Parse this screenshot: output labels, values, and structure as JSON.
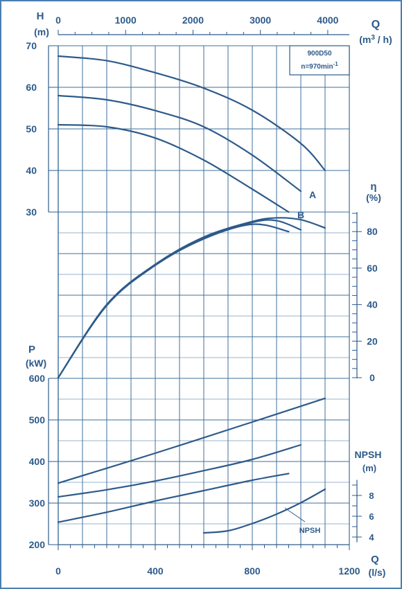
{
  "chart_data": {
    "type": "line",
    "model": "900D50",
    "speed": "n=970min",
    "speed_exp": "-1",
    "flow_axis_top": {
      "label": "Q",
      "unit_prefix": "(m",
      "unit_exp": "3",
      "unit_suffix": " / h)",
      "ticks": [
        "0",
        "1000",
        "2000",
        "3000",
        "4000"
      ],
      "range": [
        0,
        4320
      ]
    },
    "flow_axis_bottom": {
      "label": "Q",
      "unit": "(l/s)",
      "ticks": [
        "0",
        "400",
        "800",
        "1200"
      ],
      "range": [
        0,
        1200
      ]
    },
    "head_axis": {
      "label": "H",
      "unit": "(m)",
      "ticks": [
        "70",
        "60",
        "50",
        "40",
        "30"
      ],
      "range": [
        30,
        70
      ]
    },
    "eff_axis": {
      "label": "η",
      "unit": "(%)",
      "ticks": [
        "80",
        "60",
        "40",
        "20",
        "0"
      ],
      "range": [
        0,
        90
      ]
    },
    "power_axis": {
      "label": "P",
      "unit": "(kW)",
      "ticks": [
        "600",
        "500",
        "400",
        "300",
        "200"
      ],
      "range": [
        200,
        600
      ]
    },
    "npsh_axis": {
      "label": "NPSH",
      "unit": "(m)",
      "ticks": [
        "8",
        "6",
        "4"
      ],
      "range": [
        3.5,
        9.5
      ]
    },
    "curve_labels": [
      "A",
      "B"
    ],
    "npsh_label": "NPSH",
    "head_series": [
      {
        "x": [
          0,
          200,
          400,
          600,
          800,
          1000,
          1100
        ],
        "y": [
          67.5,
          66.4,
          63.5,
          59.8,
          54.5,
          46.5,
          40
        ]
      },
      {
        "x": [
          0,
          200,
          400,
          600,
          800,
          1000
        ],
        "y": [
          58,
          57,
          54.4,
          50.5,
          43.7,
          35
        ]
      },
      {
        "x": [
          0,
          200,
          400,
          600,
          800,
          950
        ],
        "y": [
          51,
          50.5,
          47.8,
          42.5,
          35.5,
          30
        ]
      }
    ],
    "efficiency_series": [
      {
        "x": [
          0,
          200,
          400,
          600,
          800,
          900,
          1000,
          1100
        ],
        "y": [
          0,
          40,
          62,
          77,
          85.5,
          87.5,
          86.5,
          82
        ]
      },
      {
        "x": [
          0,
          200,
          400,
          600,
          800,
          900,
          1000
        ],
        "y": [
          0,
          40,
          62,
          76.5,
          85,
          86,
          81
        ]
      },
      {
        "x": [
          0,
          200,
          400,
          600,
          800,
          950
        ],
        "y": [
          0,
          39.5,
          61.5,
          76,
          84,
          80
        ]
      }
    ],
    "power_series": [
      {
        "x": [
          0,
          400,
          800,
          1100
        ],
        "y": [
          348,
          420,
          495,
          552
        ]
      },
      {
        "x": [
          0,
          200,
          400,
          600,
          800,
          1000
        ],
        "y": [
          315,
          332,
          353,
          378,
          405,
          440
        ]
      },
      {
        "x": [
          0,
          200,
          400,
          600,
          800,
          950
        ],
        "y": [
          254,
          278,
          305,
          330,
          355,
          371
        ]
      }
    ],
    "npsh_series": [
      {
        "x": [
          600,
          700,
          800,
          900,
          1000,
          1100
        ],
        "y": [
          4.4,
          4.6,
          5.3,
          6.2,
          7.3,
          8.6
        ]
      }
    ]
  }
}
